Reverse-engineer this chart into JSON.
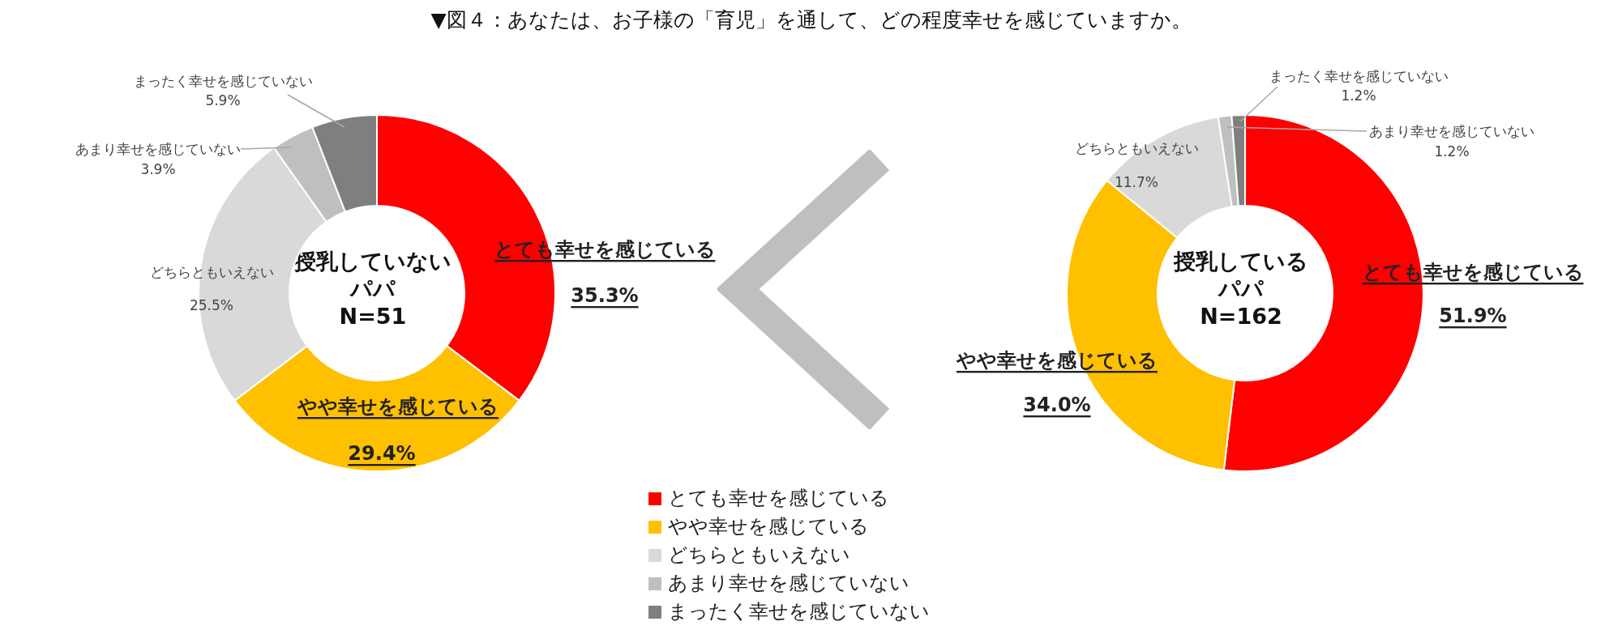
{
  "chart_data": [
    {
      "type": "donut",
      "title": "▼図４：あなたは、お子様の「育児」を通して、どの程度幸せを感じていますか。",
      "annotations": [
        "授乳していない",
        "パパ",
        "N=51"
      ],
      "categories": [
        "とても幸せを感じている",
        "やや幸せを感じている",
        "どちらともいえない",
        "あまり幸せを感じていない",
        "まったく幸せを感じていない"
      ],
      "values": [
        35.3,
        29.4,
        25.5,
        3.9,
        5.9
      ],
      "value_labels": [
        "35.3%",
        "29.4%",
        "25.5%",
        "3.9%",
        "5.9%"
      ],
      "colors": [
        "#ff0000",
        "#ffc000",
        "#d9d9d9",
        "#bfbfbf",
        "#7f7f7f"
      ],
      "legend": "bottom"
    },
    {
      "type": "donut",
      "annotations": [
        "授乳している",
        "パパ",
        "N=162"
      ],
      "categories": [
        "とても幸せを感じている",
        "やや幸せを感じている",
        "どちらともいえない",
        "あまり幸せを感じていない",
        "まったく幸せを感じていない"
      ],
      "values": [
        51.9,
        34.0,
        11.7,
        1.2,
        1.2
      ],
      "value_labels": [
        "51.9%",
        "34.0%",
        "11.7%",
        "1.2%",
        "1.2%"
      ],
      "colors": [
        "#ff0000",
        "#ffc000",
        "#d9d9d9",
        "#bfbfbf",
        "#7f7f7f"
      ]
    }
  ]
}
